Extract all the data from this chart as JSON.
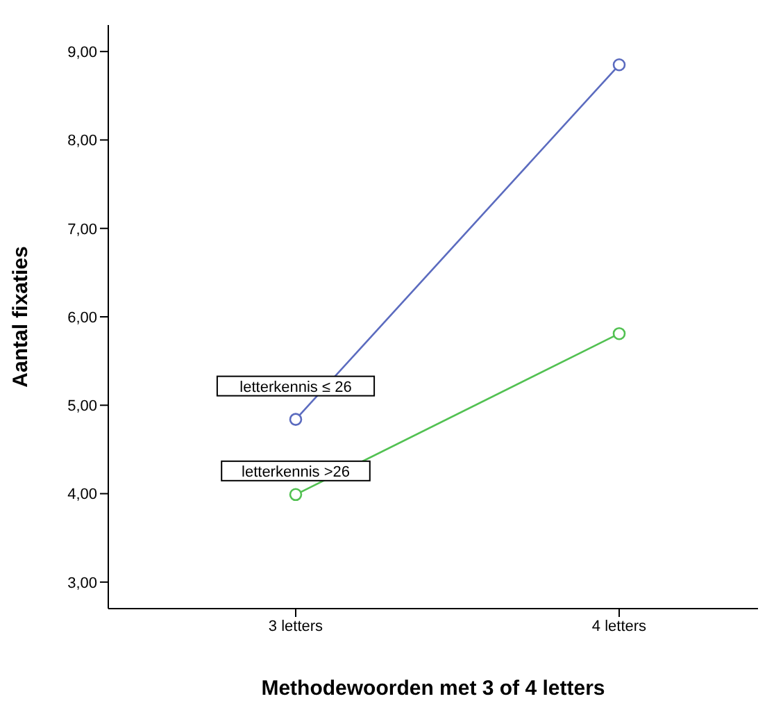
{
  "chart_data": {
    "type": "line",
    "xlabel": "Methodewoorden met 3 of 4 letters",
    "ylabel": "Aantal fixaties",
    "categories": [
      "3 letters",
      "4 letters"
    ],
    "series": [
      {
        "name": "letterkennis ≤ 26",
        "color": "#5b6bbf",
        "values": [
          4.84,
          8.85
        ]
      },
      {
        "name": "letterkennis >26",
        "color": "#52c152",
        "values": [
          3.99,
          5.81
        ]
      }
    ],
    "ylim": [
      2.7,
      9.3
    ],
    "yticks": [
      {
        "value": 3,
        "label": "3,00"
      },
      {
        "value": 4,
        "label": "4,00"
      },
      {
        "value": 5,
        "label": "5,00"
      },
      {
        "value": 6,
        "label": "6,00"
      },
      {
        "value": 7,
        "label": "7,00"
      },
      {
        "value": 8,
        "label": "8,00"
      },
      {
        "value": 9,
        "label": "9,00"
      }
    ],
    "grid": false,
    "legend": false,
    "marker": "circle",
    "line_style": "solid"
  }
}
